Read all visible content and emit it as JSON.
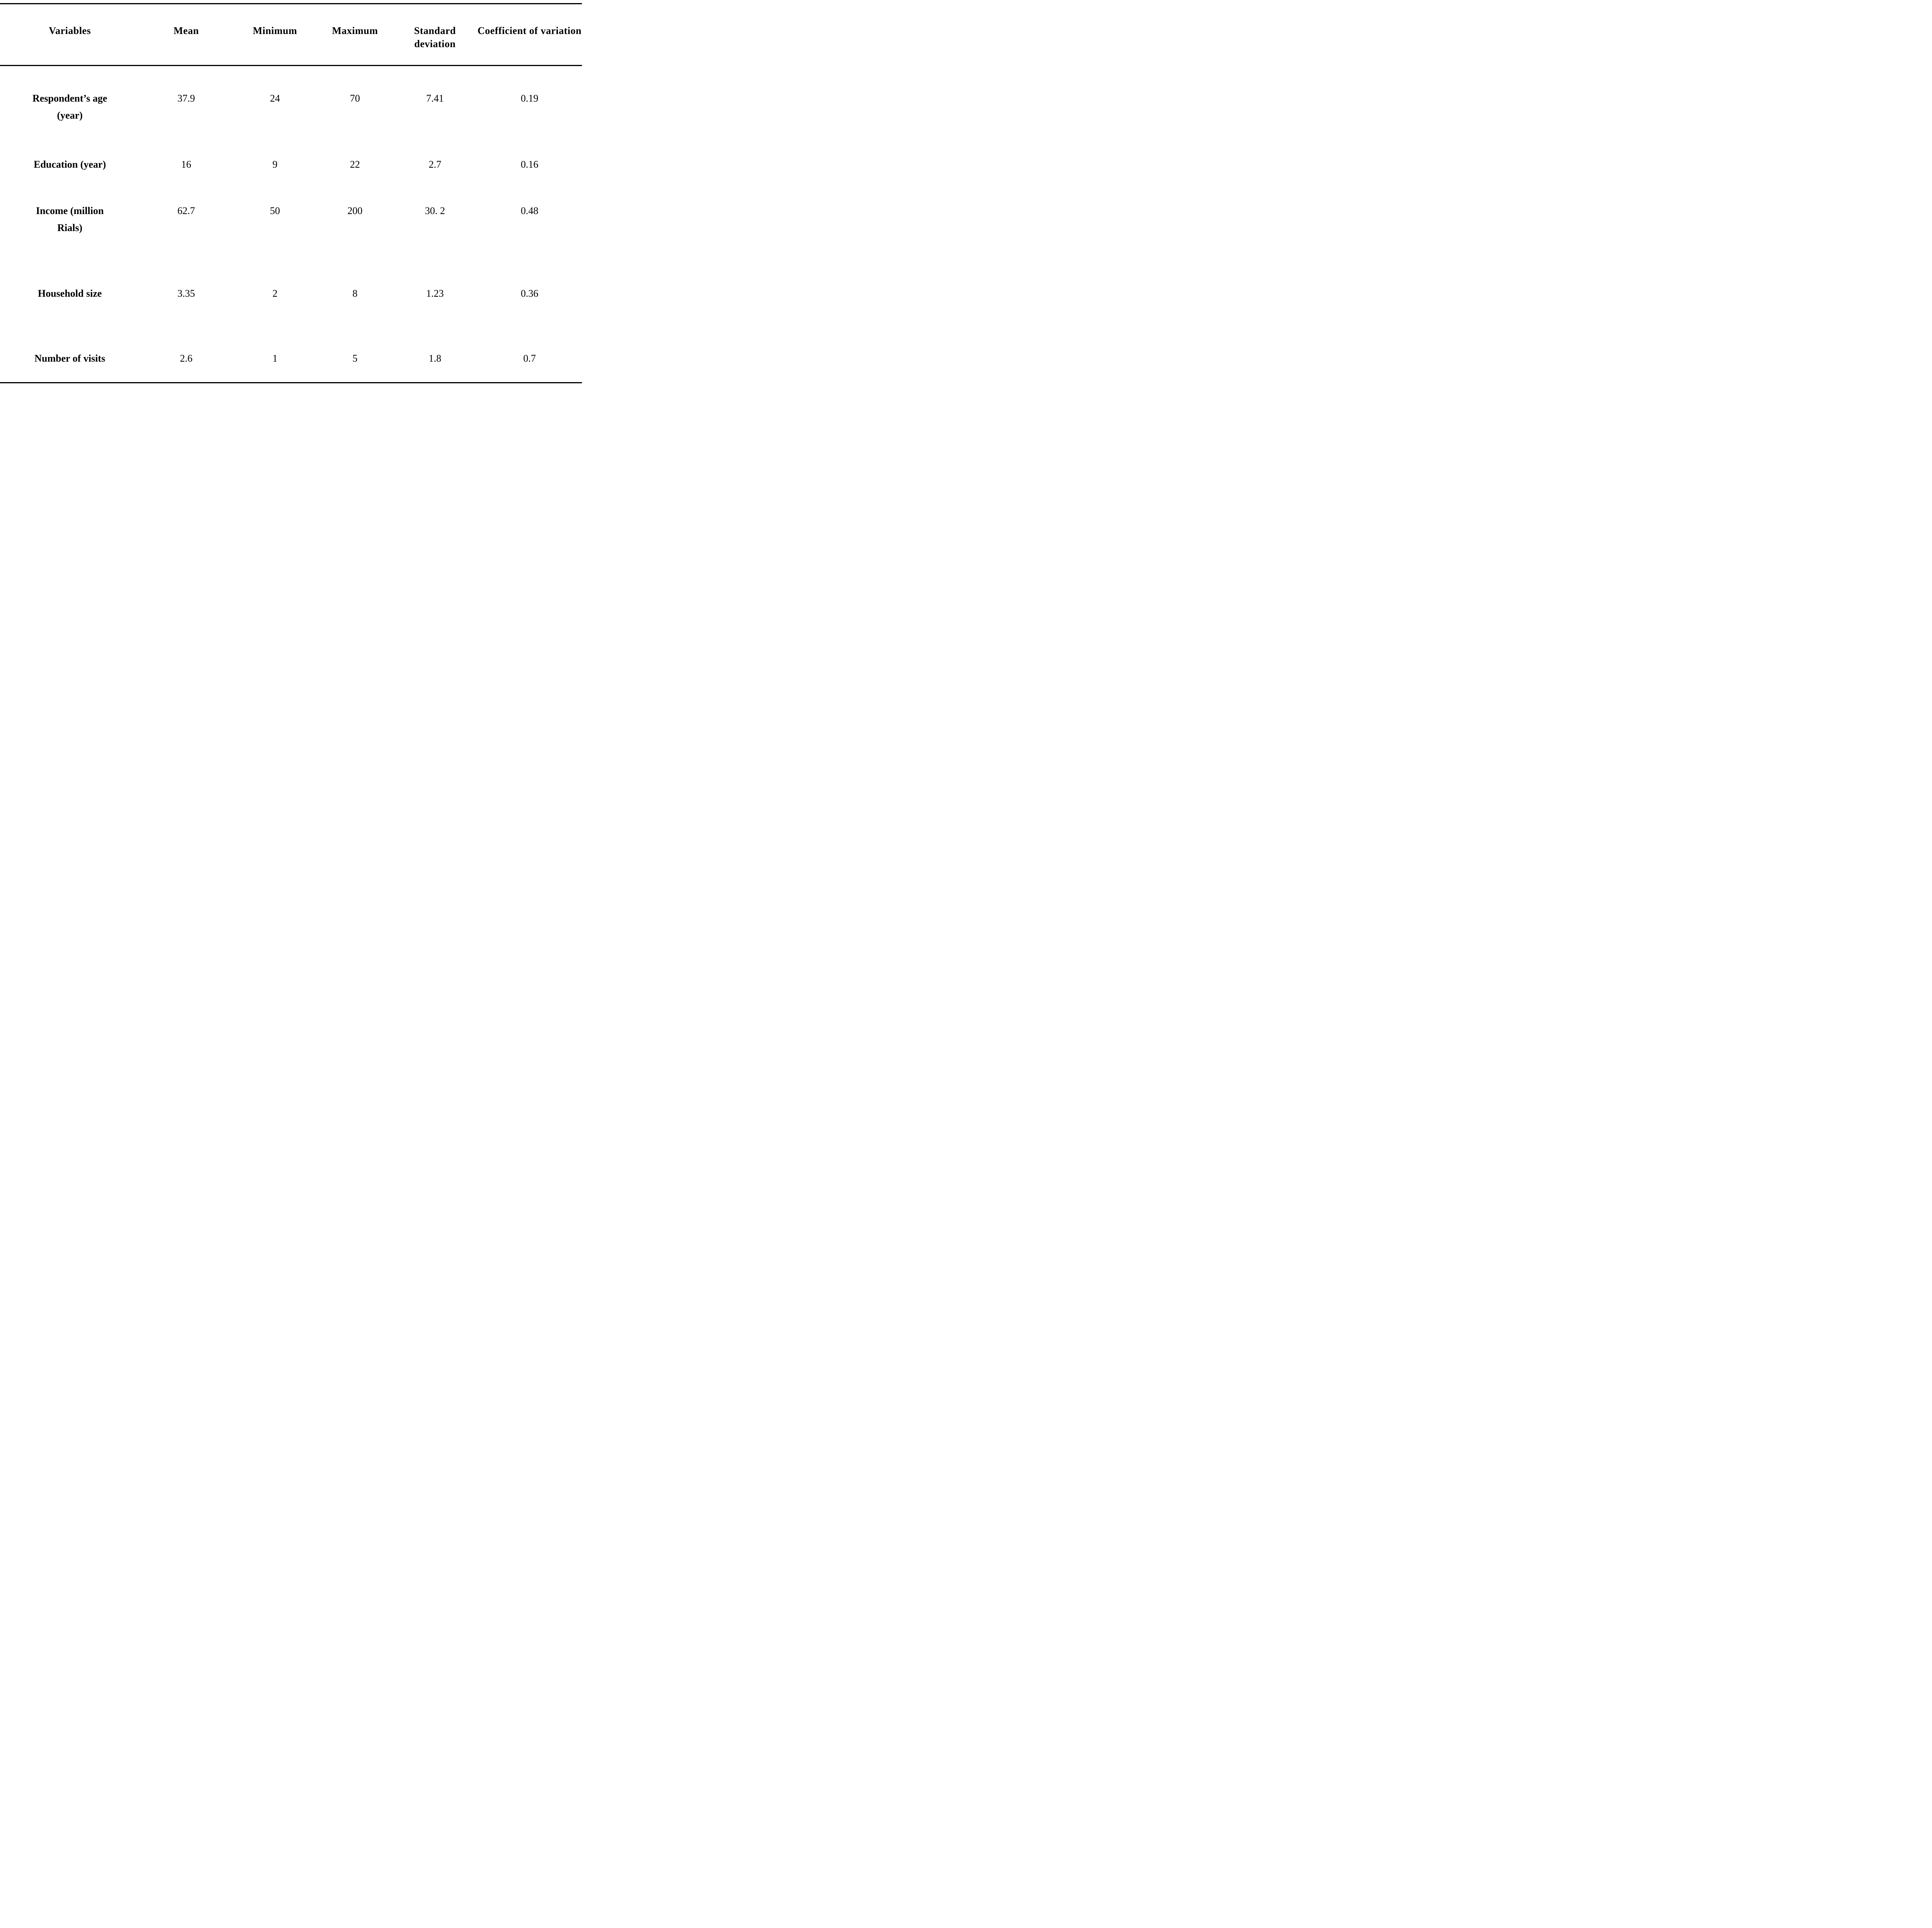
{
  "header": {
    "variables": "Variables",
    "mean": "Mean",
    "minimum": "Minimum",
    "maximum": "Maximum",
    "sd_line1": "Standard",
    "sd_line2": "deviation",
    "cv_line1": "Coefficient of",
    "cv_line2": "variation"
  },
  "rows": [
    {
      "variable_line1": "Respondent’s age",
      "variable_line2": "(year)",
      "mean": "37.9",
      "minimum": "24",
      "maximum": "70",
      "sd": "7.41",
      "cv": "0.19"
    },
    {
      "variable_line1": "Education (year)",
      "variable_line2": "",
      "mean": "16",
      "minimum": "9",
      "maximum": "22",
      "sd": "2.7",
      "cv": "0.16"
    },
    {
      "variable_line1": "Income (million",
      "variable_line2": "Rials)",
      "mean": "62.7",
      "minimum": "50",
      "maximum": "200",
      "sd": "30. 2",
      "cv": "0.48"
    },
    {
      "variable_line1": "Household size",
      "variable_line2": "",
      "mean": "3.35",
      "minimum": "2",
      "maximum": "8",
      "sd": "1.23",
      "cv": "0.36"
    },
    {
      "variable_line1": "Number of visits",
      "variable_line2": "",
      "mean": "2.6",
      "minimum": "1",
      "maximum": "5",
      "sd": "1.8",
      "cv": "0.7"
    }
  ],
  "colors": {
    "background": "#ffffff",
    "text": "#000000",
    "rule": "#000000"
  },
  "chart_data": {
    "type": "table",
    "columns": [
      "Variables",
      "Mean",
      "Minimum",
      "Maximum",
      "Standard deviation",
      "Coefficient of variation"
    ],
    "rows": [
      [
        "Respondent’s age (year)",
        "37.9",
        "24",
        "70",
        "7.41",
        "0.19"
      ],
      [
        "Education (year)",
        "16",
        "9",
        "22",
        "2.7",
        "0.16"
      ],
      [
        "Income (million Rials)",
        "62.7",
        "50",
        "200",
        "30. 2",
        "0.48"
      ],
      [
        "Household size",
        "3.35",
        "2",
        "8",
        "1.23",
        "0.36"
      ],
      [
        "Number of visits",
        "2.6",
        "1",
        "5",
        "1.8",
        "0.7"
      ]
    ]
  }
}
